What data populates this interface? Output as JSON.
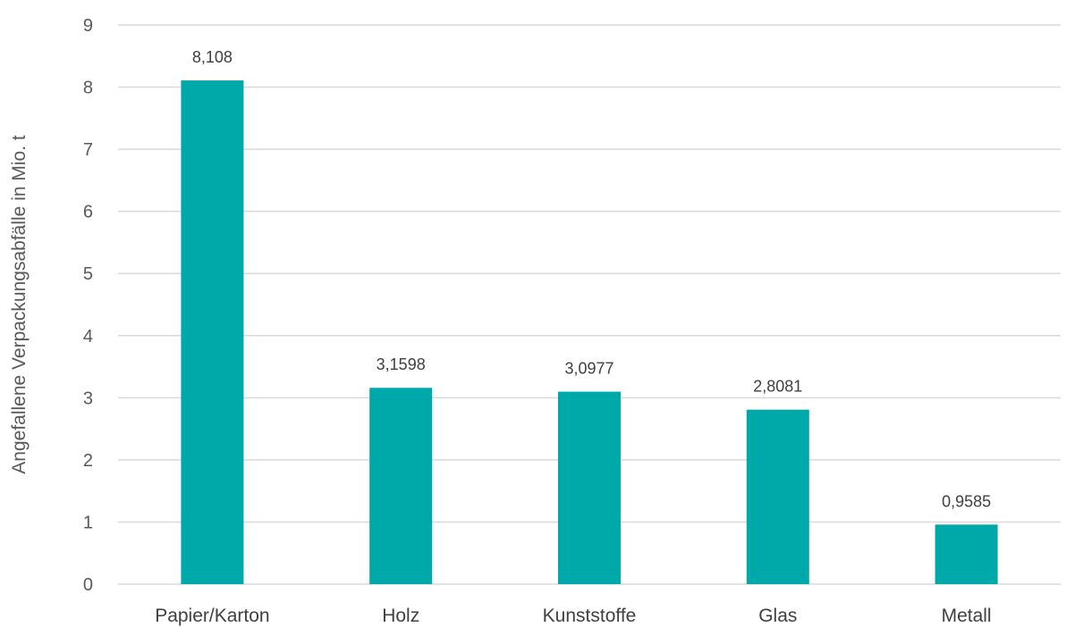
{
  "chart_data": {
    "type": "bar",
    "categories": [
      "Papier/Karton",
      "Holz",
      "Kunststoffe",
      "Glas",
      "Metall"
    ],
    "values": [
      8.108,
      3.1598,
      3.0977,
      2.8081,
      0.9585
    ],
    "data_labels": [
      "8,108",
      "3,1598",
      "3,0977",
      "2,8081",
      "0,9585"
    ],
    "title": "",
    "xlabel": "",
    "ylabel": "Angefallene Verpackungsabfälle in Mio. t",
    "ylim": [
      0,
      9
    ],
    "yticks": [
      0,
      1,
      2,
      3,
      4,
      5,
      6,
      7,
      8,
      9
    ],
    "grid": true,
    "legend": "none",
    "bar_color": "#00a9a9",
    "grid_color": "#d9d9d9"
  }
}
